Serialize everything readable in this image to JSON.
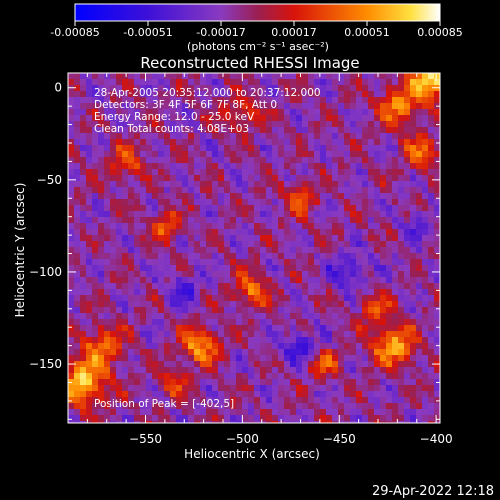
{
  "chart_data": {
    "type": "heatmap",
    "title": "Reconstructed RHESSI Image",
    "xlabel": "Heliocentric X (arcsec)",
    "ylabel": "Heliocentric Y (arcsec)",
    "xlim": [
      -590,
      -398
    ],
    "ylim": [
      -182,
      8
    ],
    "x_ticks": [
      -550,
      -500,
      -450,
      -400
    ],
    "y_ticks": [
      0,
      -50,
      -100,
      -150
    ],
    "colorbar": {
      "ticks": [
        "-0.00085",
        "-0.00051",
        "-0.00017",
        "0.00017",
        "0.00051",
        "0.00085"
      ],
      "range": [
        -0.00085,
        0.00085
      ],
      "unit_label": "(photons cm⁻² s⁻¹ asec⁻²)"
    },
    "annotations": [
      "28-Apr-2005 20:35:12.000 to 20:37:12.000",
      "Detectors: 3F 4F 5F 6F 7F 8F, Att 0",
      "Energy Range: 12.0 - 25.0 keV",
      "Clean     Total counts: 4.08E+03"
    ],
    "peak_label": "Position of Peak = [-402,5]",
    "peak_position": [
      -402,
      5
    ],
    "hot_spots": [
      {
        "x": -402,
        "y": 5,
        "value": 0.00085,
        "radius": 12
      },
      {
        "x": -420,
        "y": -10,
        "value": 0.0006,
        "radius": 10
      },
      {
        "x": -408,
        "y": -35,
        "value": 0.0005,
        "radius": 9
      },
      {
        "x": -582,
        "y": -160,
        "value": 0.0008,
        "radius": 12
      },
      {
        "x": -572,
        "y": -140,
        "value": 0.00055,
        "radius": 10
      },
      {
        "x": -422,
        "y": -140,
        "value": 0.0007,
        "radius": 11
      },
      {
        "x": -432,
        "y": -120,
        "value": 0.00045,
        "radius": 8
      },
      {
        "x": -522,
        "y": -140,
        "value": 0.00065,
        "radius": 10
      },
      {
        "x": -495,
        "y": -110,
        "value": 0.00055,
        "radius": 9
      },
      {
        "x": -470,
        "y": -60,
        "value": 0.0004,
        "radius": 9
      },
      {
        "x": -560,
        "y": -40,
        "value": 0.00045,
        "radius": 9
      },
      {
        "x": -540,
        "y": -75,
        "value": 0.00045,
        "radius": 8
      },
      {
        "x": -500,
        "y": -15,
        "value": 0.00035,
        "radius": 10
      },
      {
        "x": -458,
        "y": -150,
        "value": 0.00045,
        "radius": 8
      },
      {
        "x": -535,
        "y": -160,
        "value": 0.0004,
        "radius": 8
      }
    ],
    "cold_spots": [
      {
        "x": -470,
        "y": -140,
        "value": -0.0004,
        "radius": 9
      },
      {
        "x": -445,
        "y": -100,
        "value": -0.00035,
        "radius": 10
      },
      {
        "x": -530,
        "y": -110,
        "value": -0.0003,
        "radius": 9
      },
      {
        "x": -410,
        "y": -75,
        "value": -0.0003,
        "radius": 8
      }
    ]
  },
  "footer": {
    "timestamp": "29-Apr-2022 12:18"
  }
}
